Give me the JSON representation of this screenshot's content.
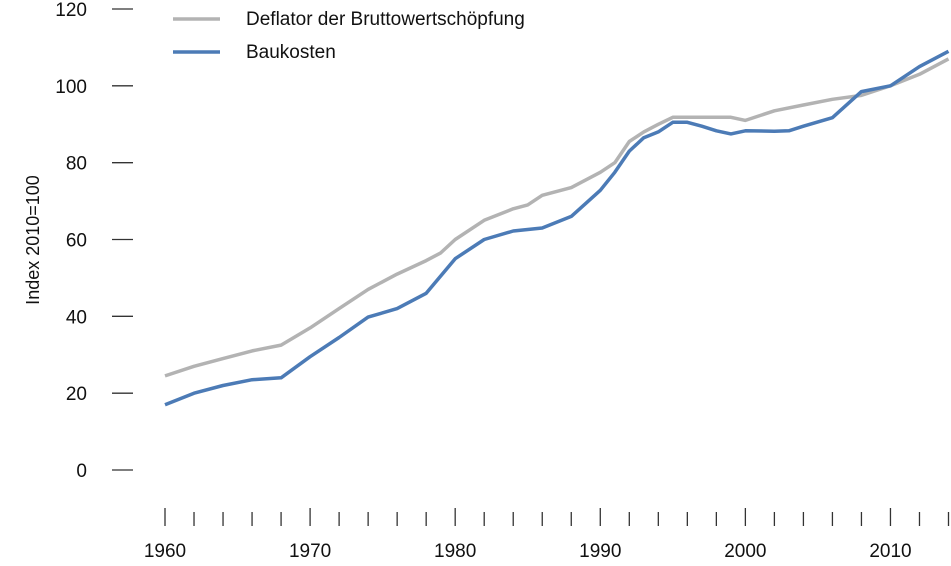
{
  "chart_data": {
    "type": "line",
    "title": "",
    "xlabel": "",
    "ylabel": "Index 2010=100",
    "xlim": [
      1960,
      2014
    ],
    "ylim": [
      0,
      120
    ],
    "yticks": [
      0,
      20,
      40,
      60,
      80,
      100,
      120
    ],
    "xtick_labels": [
      1960,
      1970,
      1980,
      1990,
      2000,
      2010
    ],
    "xtick_minor_step": 2,
    "legend": "top-left",
    "grid": false,
    "series": [
      {
        "name": "Deflator der Bruttowertschöpfung",
        "color": "#b3b3b3",
        "x": [
          1960,
          1962,
          1964,
          1966,
          1968,
          1970,
          1972,
          1974,
          1976,
          1978,
          1979,
          1980,
          1982,
          1984,
          1985,
          1986,
          1988,
          1990,
          1991,
          1992,
          1993,
          1994,
          1995,
          1996,
          1997,
          1998,
          1999,
          2000,
          2002,
          2004,
          2006,
          2008,
          2010,
          2012,
          2014
        ],
        "values": [
          24.5,
          27.0,
          29.0,
          31.0,
          32.5,
          37.0,
          42.0,
          47.0,
          51.0,
          54.5,
          56.5,
          60.0,
          65.0,
          68.0,
          69.0,
          71.5,
          73.5,
          77.5,
          80.0,
          85.5,
          88.0,
          90.0,
          91.8,
          91.8,
          91.8,
          91.8,
          91.8,
          91.0,
          93.5,
          95.0,
          96.5,
          97.5,
          100.0,
          103.0,
          107.0
        ]
      },
      {
        "name": "Baukosten",
        "color": "#4c7bb6",
        "x": [
          1960,
          1962,
          1964,
          1966,
          1968,
          1970,
          1972,
          1974,
          1976,
          1978,
          1980,
          1982,
          1984,
          1986,
          1988,
          1990,
          1991,
          1992,
          1993,
          1994,
          1995,
          1996,
          1997,
          1998,
          1999,
          2000,
          2002,
          2003,
          2004,
          2006,
          2008,
          2010,
          2012,
          2014
        ],
        "values": [
          17.0,
          20.0,
          22.0,
          23.5,
          24.0,
          29.5,
          34.5,
          39.8,
          42.0,
          46.0,
          55.0,
          60.0,
          62.2,
          63.0,
          66.0,
          72.8,
          77.5,
          83.0,
          86.5,
          88.0,
          90.5,
          90.5,
          89.5,
          88.3,
          87.5,
          88.3,
          88.2,
          88.3,
          89.5,
          91.7,
          98.5,
          100.0,
          105.0,
          109.0
        ]
      }
    ]
  }
}
